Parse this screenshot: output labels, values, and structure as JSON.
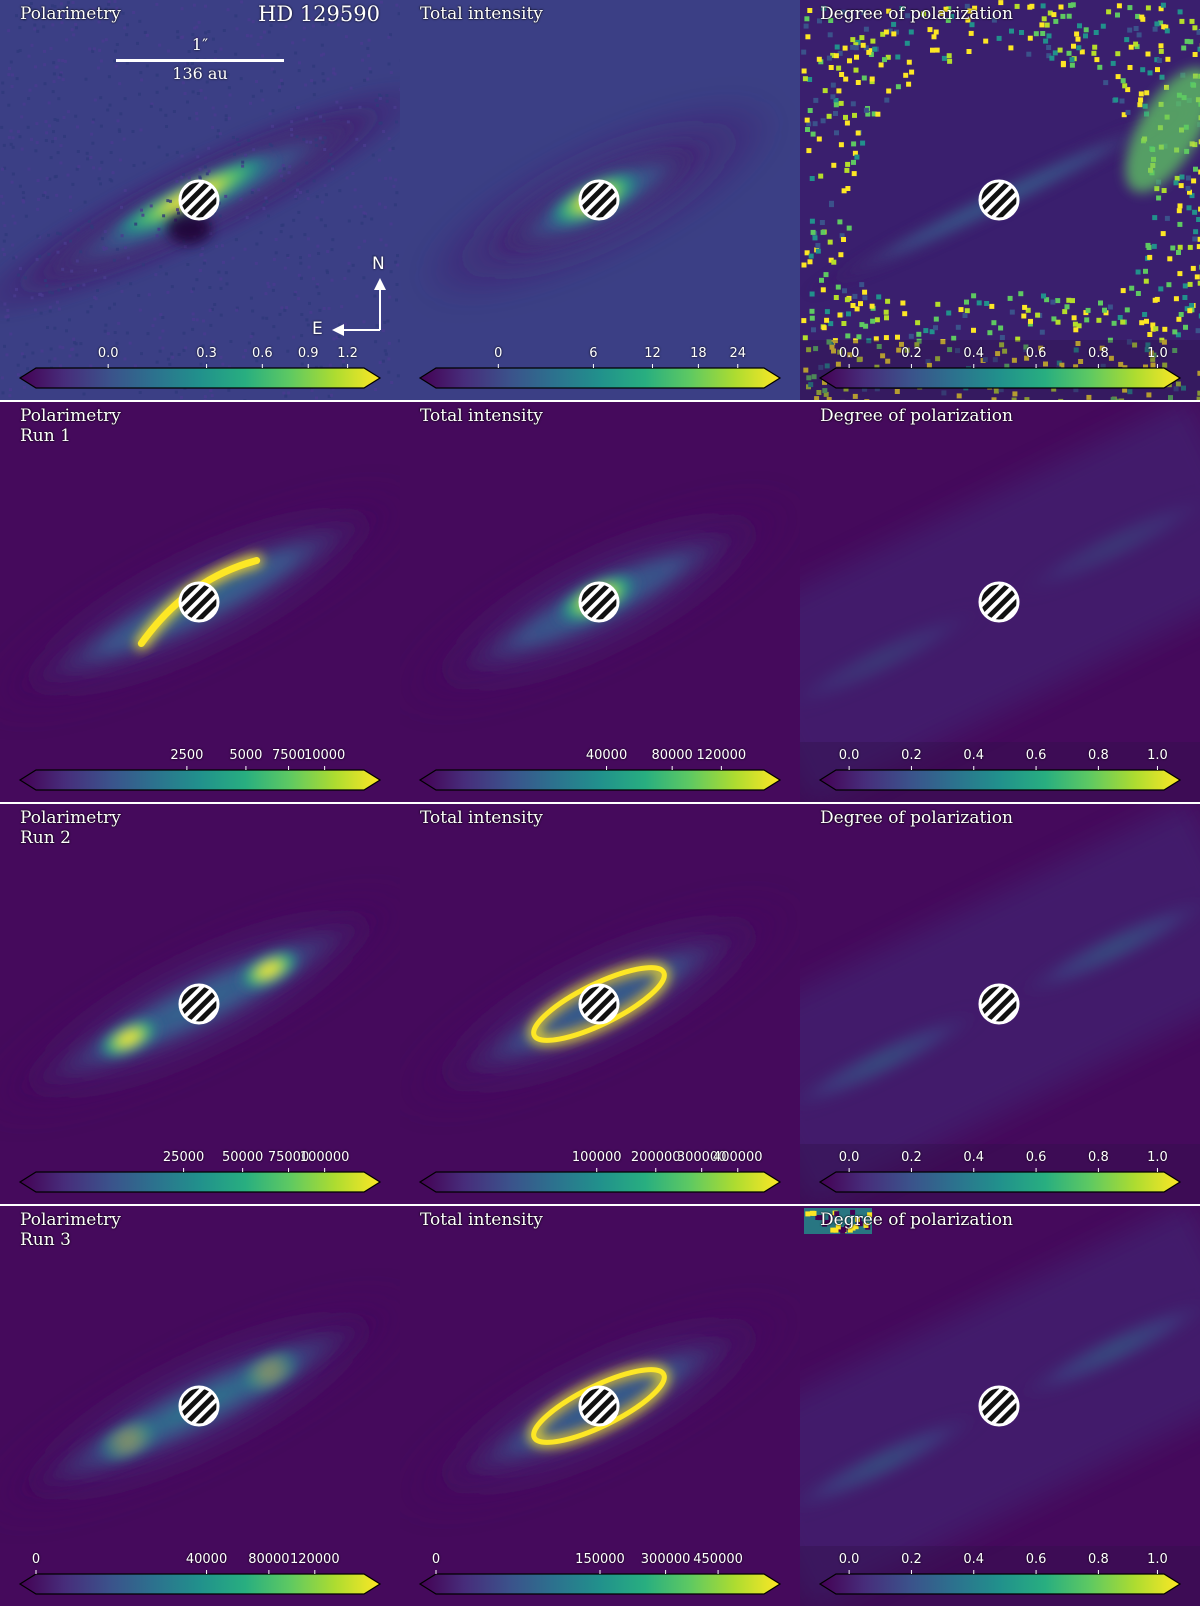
{
  "figure": {
    "target": "HD 129590",
    "scalebar": {
      "angular": "1″",
      "physical": "136 au"
    },
    "compass": {
      "north": "N",
      "east": "E"
    },
    "colormap": [
      "#440154",
      "#3b528b",
      "#21918c",
      "#5ec962",
      "#fde725"
    ],
    "rows": [
      {
        "panels": [
          {
            "title": "Polarimetry",
            "kind": "pol-obs",
            "ticks": [
              {
                "label": "0.0",
                "frac": 0.22
              },
              {
                "label": "0.3",
                "frac": 0.52
              },
              {
                "label": "0.6",
                "frac": 0.69
              },
              {
                "label": "0.9",
                "frac": 0.83
              },
              {
                "label": "1.2",
                "frac": 0.95
              }
            ]
          },
          {
            "title": "Total intensity",
            "kind": "int-obs",
            "ticks": [
              {
                "label": "0",
                "frac": 0.19
              },
              {
                "label": "6",
                "frac": 0.48
              },
              {
                "label": "12",
                "frac": 0.66
              },
              {
                "label": "18",
                "frac": 0.8
              },
              {
                "label": "24",
                "frac": 0.92
              }
            ]
          },
          {
            "title": "Degree of polarization",
            "kind": "dop-obs",
            "ticks": [
              {
                "label": "0.0",
                "frac": 0.04
              },
              {
                "label": "0.2",
                "frac": 0.23
              },
              {
                "label": "0.4",
                "frac": 0.42
              },
              {
                "label": "0.6",
                "frac": 0.61
              },
              {
                "label": "0.8",
                "frac": 0.8
              },
              {
                "label": "1.0",
                "frac": 0.98
              }
            ]
          }
        ]
      },
      {
        "panels": [
          {
            "title": "Polarimetry\nRun 1",
            "kind": "pol-run1",
            "ticks": [
              {
                "label": "2500",
                "frac": 0.46
              },
              {
                "label": "5000",
                "frac": 0.64
              },
              {
                "label": "7500",
                "frac": 0.77
              },
              {
                "label": "10000",
                "frac": 0.88
              }
            ]
          },
          {
            "title": "Total intensity",
            "kind": "int-run1",
            "ticks": [
              {
                "label": "40000",
                "frac": 0.52
              },
              {
                "label": "80000",
                "frac": 0.72
              },
              {
                "label": "120000",
                "frac": 0.87
              }
            ]
          },
          {
            "title": "Degree of polarization",
            "kind": "dop-run1",
            "ticks": [
              {
                "label": "0.0",
                "frac": 0.04
              },
              {
                "label": "0.2",
                "frac": 0.23
              },
              {
                "label": "0.4",
                "frac": 0.42
              },
              {
                "label": "0.6",
                "frac": 0.61
              },
              {
                "label": "0.8",
                "frac": 0.8
              },
              {
                "label": "1.0",
                "frac": 0.98
              }
            ]
          }
        ]
      },
      {
        "panels": [
          {
            "title": "Polarimetry\nRun 2",
            "kind": "pol-run2",
            "ticks": [
              {
                "label": "25000",
                "frac": 0.45
              },
              {
                "label": "50000",
                "frac": 0.63
              },
              {
                "label": "75000",
                "frac": 0.77
              },
              {
                "label": "100000",
                "frac": 0.88
              }
            ]
          },
          {
            "title": "Total intensity",
            "kind": "int-run2",
            "ticks": [
              {
                "label": "100000",
                "frac": 0.49
              },
              {
                "label": "200000",
                "frac": 0.67
              },
              {
                "label": "300000",
                "frac": 0.81
              },
              {
                "label": "400000",
                "frac": 0.92
              }
            ]
          },
          {
            "title": "Degree of polarization",
            "kind": "dop-run2",
            "ticks": [
              {
                "label": "0.0",
                "frac": 0.04
              },
              {
                "label": "0.2",
                "frac": 0.23
              },
              {
                "label": "0.4",
                "frac": 0.42
              },
              {
                "label": "0.6",
                "frac": 0.61
              },
              {
                "label": "0.8",
                "frac": 0.8
              },
              {
                "label": "1.0",
                "frac": 0.98
              }
            ]
          }
        ]
      },
      {
        "panels": [
          {
            "title": "Polarimetry\nRun 3",
            "kind": "pol-run3",
            "ticks": [
              {
                "label": "0",
                "frac": 0.0
              },
              {
                "label": "40000",
                "frac": 0.52
              },
              {
                "label": "80000",
                "frac": 0.71
              },
              {
                "label": "120000",
                "frac": 0.85
              }
            ]
          },
          {
            "title": "Total intensity",
            "kind": "int-run3",
            "ticks": [
              {
                "label": "0",
                "frac": 0.0
              },
              {
                "label": "150000",
                "frac": 0.5
              },
              {
                "label": "300000",
                "frac": 0.7
              },
              {
                "label": "450000",
                "frac": 0.86
              }
            ]
          },
          {
            "title": "Degree of polarization",
            "kind": "dop-run3",
            "ticks": [
              {
                "label": "0.0",
                "frac": 0.04
              },
              {
                "label": "0.2",
                "frac": 0.23
              },
              {
                "label": "0.4",
                "frac": 0.42
              },
              {
                "label": "0.6",
                "frac": 0.61
              },
              {
                "label": "0.8",
                "frac": 0.8
              },
              {
                "label": "1.0",
                "frac": 0.98
              }
            ]
          }
        ]
      }
    ]
  }
}
